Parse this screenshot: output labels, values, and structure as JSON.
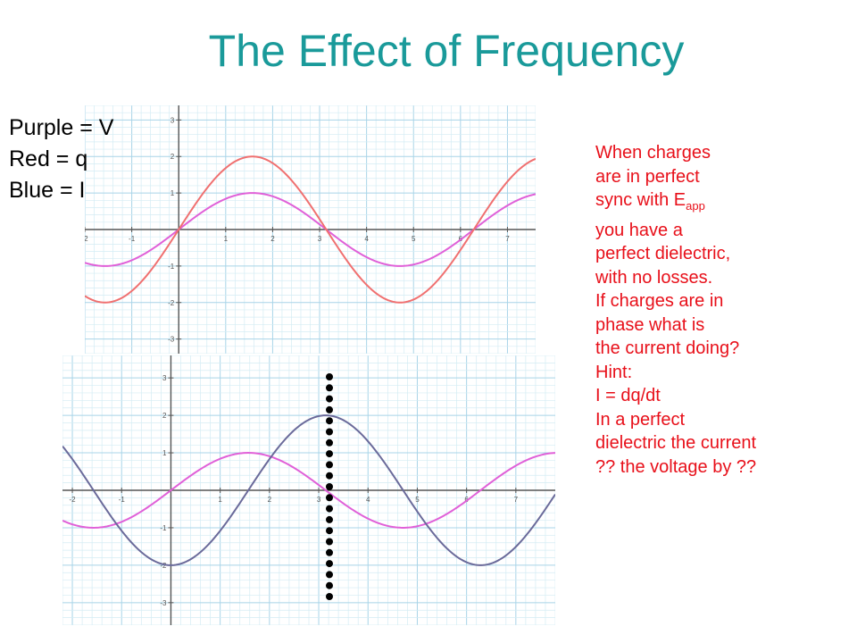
{
  "slide": {
    "title": "The Effect of Frequency",
    "legend": [
      "Purple = V",
      "Red = q",
      "Blue = I"
    ],
    "side_text": {
      "line1": "When charges",
      "line2": "are in perfect",
      "line3_pre": "sync with E",
      "line3_sub": "app",
      "lines_rest": [
        "you have a",
        "perfect dielectric,",
        "with no losses.",
        "If charges are in",
        "phase what is",
        "the current doing?",
        "Hint:",
        "I = dq/dt",
        "In a perfect",
        "dielectric the current",
        "?? the voltage by ??"
      ]
    }
  },
  "colors": {
    "title": "#1a9a9a",
    "side_text": "#e8101a",
    "voltage": "#e060d8",
    "charge": "#f07070",
    "current": "#6a6a9a",
    "grid_minor": "#d4ecf4",
    "grid_major": "#a8d4e8",
    "axis": "#555555",
    "marker_dots": "#000000"
  },
  "chart_data": [
    {
      "type": "line",
      "xlim": [
        -2,
        7.6
      ],
      "ylim": [
        -3.4,
        3.4
      ],
      "x_ticks": [
        "-2",
        "-1",
        "1",
        "2",
        "3",
        "4",
        "5",
        "6",
        "7"
      ],
      "y_ticks": [
        "-3",
        "-2",
        "-1",
        "1",
        "2",
        "3"
      ],
      "grid": true,
      "series": [
        {
          "name": "V",
          "color": "#e060d8",
          "function": "sin",
          "amplitude": 1,
          "phase": 0
        },
        {
          "name": "q",
          "color": "#f07070",
          "function": "sin",
          "amplitude": 2,
          "phase": 0
        }
      ]
    },
    {
      "type": "line",
      "xlim": [
        -2.2,
        7.8
      ],
      "ylim": [
        -3.6,
        3.6
      ],
      "x_ticks": [
        "-2",
        "-1",
        "1",
        "2",
        "3",
        "4",
        "5",
        "6",
        "7"
      ],
      "y_ticks": [
        "-3",
        "-2",
        "-1",
        "1",
        "2",
        "3"
      ],
      "grid": true,
      "series": [
        {
          "name": "V",
          "color": "#e060d8",
          "function": "sin",
          "amplitude": 1,
          "phase": 0
        },
        {
          "name": "I",
          "color": "#6a6a9a",
          "function": "-cos",
          "amplitude": 2,
          "phase": 0
        }
      ],
      "marker_line_x": 3.3
    }
  ]
}
